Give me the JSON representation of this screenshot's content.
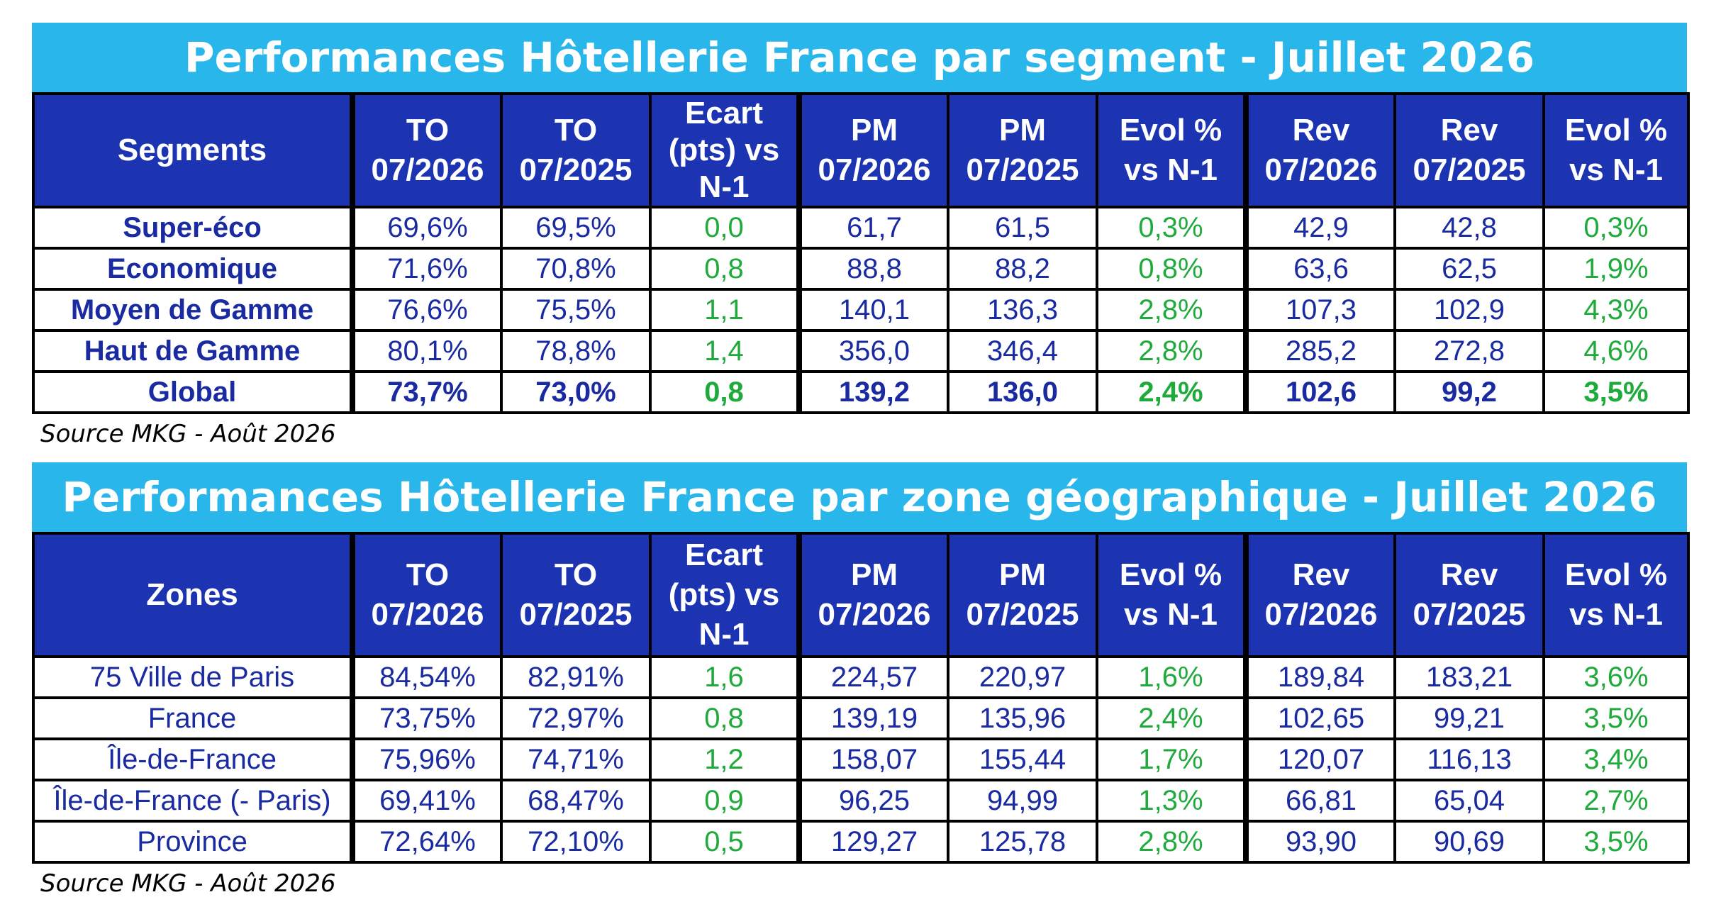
{
  "segment_table": {
    "title": "Performances Hôtellerie France par segment - Juillet 2026",
    "headers": [
      "Segments",
      "TO\n07/2026",
      "TO\n07/2025",
      "Ecart\n(pts) vs\nN-1",
      "PM\n07/2026",
      "PM\n07/2025",
      "Evol %\nvs N-1",
      "Rev\n07/2026",
      "Rev\n07/2025",
      "Evol %\nvs N-1"
    ],
    "rows": [
      [
        "Super-éco",
        "69,6%",
        "69,5%",
        "0,0",
        "61,7",
        "61,5",
        "0,3%",
        "42,9",
        "42,8",
        "0,3%"
      ],
      [
        "Economique",
        "71,6%",
        "70,8%",
        "0,8",
        "88,8",
        "88,2",
        "0,8%",
        "63,6",
        "62,5",
        "1,9%"
      ],
      [
        "Moyen de Gamme",
        "76,6%",
        "75,5%",
        "1,1",
        "140,1",
        "136,3",
        "2,8%",
        "107,3",
        "102,9",
        "4,3%"
      ],
      [
        "Haut de Gamme",
        "80,1%",
        "78,8%",
        "1,4",
        "356,0",
        "346,4",
        "2,8%",
        "285,2",
        "272,8",
        "4,6%"
      ],
      [
        "Global",
        "73,7%",
        "73,0%",
        "0,8",
        "139,2",
        "136,0",
        "2,4%",
        "102,6",
        "99,2",
        "3,5%"
      ]
    ],
    "source": "Source MKG - Août 2026"
  },
  "zone_table": {
    "title": "Performances Hôtellerie France par zone géographique - Juillet 2026",
    "headers": [
      "Zones",
      "TO\n07/2026",
      "TO\n07/2025",
      "Ecart\n(pts) vs\nN-1",
      "PM\n07/2026",
      "PM\n07/2025",
      "Evol %\nvs N-1",
      "Rev\n07/2026",
      "Rev\n07/2025",
      "Evol %\nvs N-1"
    ],
    "rows": [
      [
        "75 Ville de Paris",
        "84,54%",
        "82,91%",
        "1,6",
        "224,57",
        "220,97",
        "1,6%",
        "189,84",
        "183,21",
        "3,6%"
      ],
      [
        "France",
        "73,75%",
        "72,97%",
        "0,8",
        "139,19",
        "135,96",
        "2,4%",
        "102,65",
        "99,21",
        "3,5%"
      ],
      [
        "Île-de-France",
        "75,96%",
        "74,71%",
        "1,2",
        "158,07",
        "155,44",
        "1,7%",
        "120,07",
        "116,13",
        "3,4%"
      ],
      [
        "Île-de-France (- Paris)",
        "69,41%",
        "68,47%",
        "0,9",
        "96,25",
        "94,99",
        "1,3%",
        "66,81",
        "65,04",
        "2,7%"
      ],
      [
        "Province",
        "72,64%",
        "72,10%",
        "0,5",
        "129,27",
        "125,78",
        "2,8%",
        "93,90",
        "90,69",
        "3,5%"
      ]
    ],
    "source": "Source MKG - Août 2026"
  },
  "colors": {
    "banner": "#29b6ea",
    "header_bg": "#1c34b2",
    "value_text": "#1a2aa0",
    "positive_text": "#1faa3c"
  }
}
